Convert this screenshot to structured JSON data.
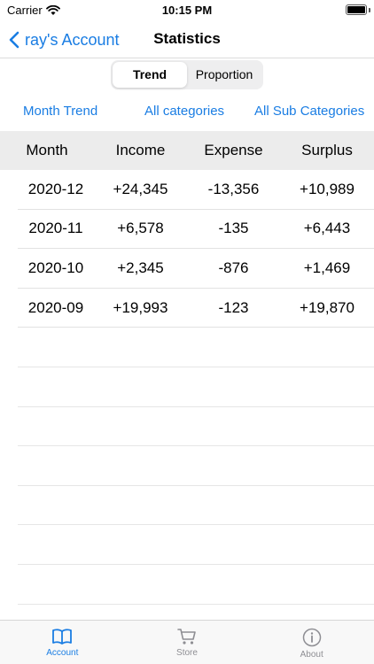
{
  "status": {
    "carrier": "Carrier",
    "time": "10:15 PM"
  },
  "nav": {
    "back_label": "ray's Account",
    "title": "Statistics"
  },
  "segments": [
    {
      "label": "Trend",
      "active": true
    },
    {
      "label": "Proportion",
      "active": false
    }
  ],
  "filters": {
    "period": "Month Trend",
    "category": "All categories",
    "subcategory": "All Sub Categories"
  },
  "table": {
    "headers": [
      "Month",
      "Income",
      "Expense",
      "Surplus"
    ],
    "rows": [
      [
        "2020-12",
        "+24,345",
        "-13,356",
        "+10,989"
      ],
      [
        "2020-11",
        "+6,578",
        "-135",
        "+6,443"
      ],
      [
        "2020-10",
        "+2,345",
        "-876",
        "+1,469"
      ],
      [
        "2020-09",
        "+19,993",
        "-123",
        "+19,870"
      ]
    ]
  },
  "tabs": [
    {
      "label": "Account",
      "icon": "book-icon",
      "active": true
    },
    {
      "label": "Store",
      "icon": "cart-icon",
      "active": false
    },
    {
      "label": "About",
      "icon": "info-icon",
      "active": false
    }
  ],
  "colors": {
    "accent": "#1a7de3",
    "inactive": "#8e8e93",
    "header_bg": "#ececec"
  }
}
